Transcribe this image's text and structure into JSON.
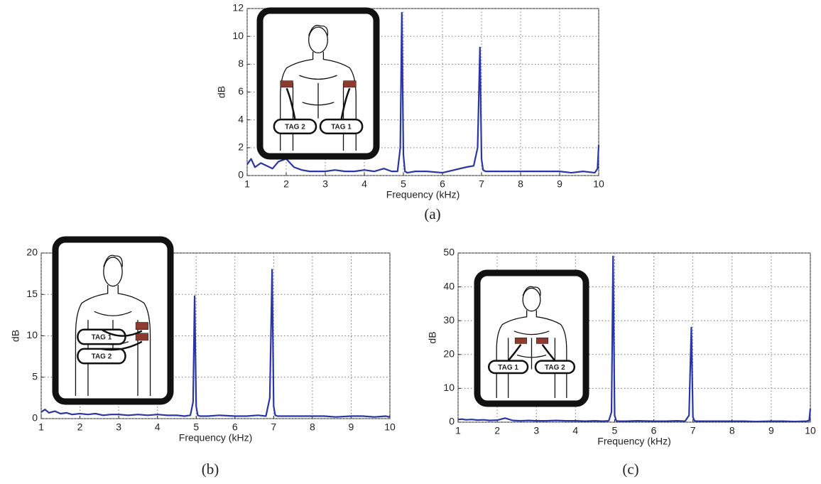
{
  "chart_data": [
    {
      "type": "line",
      "caption": "(a)",
      "xlabel": "Frequency (kHz)",
      "ylabel": "dB",
      "x": [
        1,
        1.1,
        1.2,
        1.35,
        1.5,
        1.65,
        1.8,
        2,
        2.2,
        2.4,
        2.6,
        2.8,
        3,
        3.25,
        3.5,
        3.75,
        4,
        4.25,
        4.5,
        4.7,
        4.85,
        4.92,
        4.96,
        5,
        5.04,
        5.1,
        5.3,
        5.6,
        6,
        6.3,
        6.6,
        6.8,
        6.9,
        6.96,
        7,
        7.04,
        7.1,
        7.3,
        7.6,
        8,
        8.3,
        8.6,
        9,
        9.3,
        9.6,
        9.9,
        9.97,
        10
      ],
      "values": [
        0.8,
        1.2,
        0.6,
        0.9,
        0.7,
        0.5,
        1.0,
        1.2,
        0.6,
        0.4,
        0.3,
        0.3,
        0.3,
        0.4,
        0.3,
        0.3,
        0.4,
        0.3,
        0.5,
        0.3,
        0.3,
        2.0,
        11.7,
        1.5,
        0.3,
        0.2,
        0.3,
        0.3,
        0.2,
        0.4,
        0.6,
        0.7,
        2.0,
        9.2,
        1.2,
        0.4,
        0.3,
        0.3,
        0.3,
        0.3,
        0.3,
        0.3,
        0.3,
        0.2,
        0.3,
        0.2,
        0.5,
        2.2
      ],
      "color": "#2a36a6",
      "xlim": [
        1,
        10
      ],
      "ylim": [
        0,
        12
      ],
      "xticks": [
        1,
        2,
        3,
        4,
        5,
        6,
        7,
        8,
        9,
        10
      ],
      "yticks": [
        0,
        2,
        4,
        6,
        8,
        10,
        12
      ],
      "grid": true,
      "inset_labels": [
        "TAG 2",
        "TAG 1"
      ]
    },
    {
      "type": "line",
      "caption": "(b)",
      "xlabel": "Frequency (kHz)",
      "ylabel": "dB",
      "x": [
        1,
        1.1,
        1.2,
        1.35,
        1.5,
        1.65,
        1.8,
        2,
        2.2,
        2.4,
        2.6,
        2.8,
        3,
        3.25,
        3.5,
        3.75,
        4,
        4.25,
        4.5,
        4.7,
        4.85,
        4.92,
        4.96,
        5,
        5.04,
        5.1,
        5.3,
        5.6,
        6,
        6.3,
        6.6,
        6.8,
        6.9,
        6.96,
        7,
        7.04,
        7.1,
        7.3,
        7.6,
        8,
        8.3,
        8.6,
        9,
        9.3,
        9.6,
        9.9,
        9.97,
        10
      ],
      "values": [
        0.8,
        1.1,
        0.7,
        0.9,
        0.6,
        0.7,
        0.5,
        0.6,
        0.5,
        0.6,
        0.4,
        0.5,
        0.5,
        0.4,
        0.5,
        0.4,
        0.5,
        0.4,
        0.4,
        0.3,
        0.4,
        2.0,
        14.8,
        1.5,
        0.4,
        0.3,
        0.3,
        0.4,
        0.3,
        0.3,
        0.4,
        0.3,
        2.5,
        18.0,
        1.5,
        0.4,
        0.3,
        0.3,
        0.3,
        0.3,
        0.3,
        0.2,
        0.3,
        0.3,
        0.2,
        0.3,
        0.2,
        0.3
      ],
      "color": "#2a36a6",
      "xlim": [
        1,
        10
      ],
      "ylim": [
        0,
        20
      ],
      "xticks": [
        1,
        2,
        3,
        4,
        5,
        6,
        7,
        8,
        9,
        10
      ],
      "yticks": [
        0,
        5,
        10,
        15,
        20
      ],
      "grid": true,
      "inset_labels": [
        "TAG 1",
        "TAG 2"
      ]
    },
    {
      "type": "line",
      "caption": "(c)",
      "xlabel": "Frequency (kHz)",
      "ylabel": "dB",
      "x": [
        1,
        1.1,
        1.2,
        1.35,
        1.5,
        1.65,
        1.8,
        2,
        2.2,
        2.4,
        2.6,
        2.8,
        3,
        3.25,
        3.5,
        3.75,
        4,
        4.25,
        4.5,
        4.7,
        4.85,
        4.92,
        4.96,
        5,
        5.04,
        5.1,
        5.3,
        5.6,
        6,
        6.3,
        6.6,
        6.8,
        6.9,
        6.96,
        7,
        7.04,
        7.1,
        7.3,
        7.6,
        8,
        8.3,
        8.6,
        9,
        9.3,
        9.6,
        9.9,
        9.97,
        10
      ],
      "values": [
        0.8,
        0.9,
        0.7,
        0.8,
        0.6,
        0.7,
        0.5,
        0.6,
        1.2,
        0.5,
        0.4,
        0.5,
        0.4,
        0.4,
        0.5,
        0.4,
        0.4,
        0.3,
        0.4,
        0.3,
        0.4,
        3.0,
        49.0,
        2.0,
        0.4,
        0.3,
        0.3,
        0.4,
        0.3,
        0.3,
        0.4,
        0.3,
        2.0,
        28.0,
        1.5,
        0.4,
        0.3,
        0.3,
        0.3,
        0.3,
        0.3,
        0.2,
        0.3,
        0.3,
        0.2,
        0.3,
        0.5,
        4.0
      ],
      "color": "#2a36a6",
      "xlim": [
        1,
        10
      ],
      "ylim": [
        0,
        50
      ],
      "xticks": [
        1,
        2,
        3,
        4,
        5,
        6,
        7,
        8,
        9,
        10
      ],
      "yticks": [
        0,
        10,
        20,
        30,
        40,
        50
      ],
      "grid": true,
      "inset_labels": [
        "TAG 1",
        "TAG 2"
      ]
    }
  ]
}
